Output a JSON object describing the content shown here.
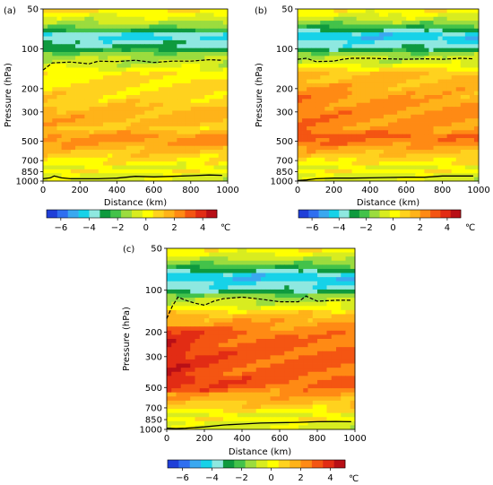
{
  "palette": {
    "levels": [
      "#1f3fd8",
      "#2f6ff0",
      "#3aa8f0",
      "#16d2e8",
      "#8ee8e0",
      "#0e9a3e",
      "#43c24a",
      "#9bdc3e",
      "#d8ec20",
      "#ffff00",
      "#ffd21e",
      "#ffb319",
      "#ff8a14",
      "#f45512",
      "#e22c14",
      "#b80f16"
    ],
    "line": "#000000"
  },
  "chart_data": [
    {
      "type": "heatmap",
      "panel_label": "(a)",
      "xlabel": "Distance (km)",
      "ylabel": "Pressure (hPa)",
      "xlim": [
        0,
        1000
      ],
      "ylim": [
        1000,
        50
      ],
      "y_scale": "log",
      "x_ticks": [
        "0",
        "200",
        "400",
        "600",
        "800",
        "1000"
      ],
      "y_ticks": [
        "50",
        "100",
        "200",
        "300",
        "500",
        "700",
        "850",
        "1000"
      ],
      "colorbar": {
        "ticks": [
          "−6",
          "−4",
          "−2",
          "0",
          "2",
          "4"
        ],
        "unit": "℃",
        "range": [
          -7,
          5
        ],
        "step": 0.75
      },
      "temperature_profile": {
        "pressure_hPa": [
          50,
          60,
          70,
          80,
          90,
          100,
          110,
          130,
          150,
          200,
          250,
          300,
          350,
          400,
          450,
          500,
          550,
          600,
          650,
          700,
          750,
          800,
          850,
          900,
          950,
          1000
        ],
        "value_C": [
          0.6,
          -0.6,
          -1.8,
          -4.5,
          -3.4,
          -3.0,
          -1.4,
          -0.8,
          0.3,
          0.6,
          0.9,
          1.4,
          1.6,
          1.0,
          2.0,
          2.1,
          1.6,
          1.2,
          0.8,
          0.5,
          0.1,
          -0.6,
          0.4,
          -0.6,
          -0.3,
          -0.9
        ]
      },
      "tropopause_line_hPa": [
        [
          0,
          145
        ],
        [
          50,
          128
        ],
        [
          150,
          126
        ],
        [
          250,
          130
        ],
        [
          300,
          124
        ],
        [
          400,
          125
        ],
        [
          500,
          122
        ],
        [
          600,
          127
        ],
        [
          700,
          124
        ],
        [
          800,
          124
        ],
        [
          900,
          121
        ],
        [
          970,
          122
        ]
      ],
      "surface_line_hPa": [
        [
          0,
          960
        ],
        [
          40,
          945
        ],
        [
          60,
          915
        ],
        [
          100,
          945
        ],
        [
          150,
          960
        ],
        [
          200,
          960
        ],
        [
          300,
          960
        ],
        [
          400,
          950
        ],
        [
          500,
          920
        ],
        [
          600,
          930
        ],
        [
          700,
          920
        ],
        [
          800,
          910
        ],
        [
          900,
          900
        ],
        [
          970,
          905
        ]
      ]
    },
    {
      "type": "heatmap",
      "panel_label": "(b)",
      "xlabel": "Distance (km)",
      "ylabel": "Pressure (hPa)",
      "xlim": [
        0,
        1000
      ],
      "ylim": [
        1000,
        50
      ],
      "y_scale": "log",
      "x_ticks": [
        "0",
        "200",
        "400",
        "600",
        "800",
        "1000"
      ],
      "y_ticks": [
        "50",
        "100",
        "200",
        "300",
        "500",
        "700",
        "850",
        "1000"
      ],
      "colorbar": {
        "ticks": [
          "−6",
          "−4",
          "−2",
          "0",
          "2",
          "4"
        ],
        "unit": "℃",
        "range": [
          -7,
          5
        ],
        "step": 0.75
      },
      "temperature_profile": {
        "pressure_hPa": [
          50,
          60,
          70,
          80,
          90,
          100,
          110,
          130,
          150,
          200,
          250,
          300,
          350,
          400,
          450,
          500,
          550,
          600,
          650,
          700,
          750,
          800,
          850,
          900,
          950,
          1000
        ],
        "value_C": [
          0.4,
          -0.8,
          -2.6,
          -4.8,
          -3.8,
          -3.2,
          -1.3,
          -0.5,
          1.2,
          1.6,
          1.8,
          2.1,
          2.0,
          1.9,
          2.8,
          2.4,
          1.9,
          1.5,
          1.0,
          0.6,
          0.2,
          -0.6,
          0.4,
          -0.6,
          -0.3,
          -0.9
        ]
      },
      "tropopause_line_hPa": [
        [
          0,
          120
        ],
        [
          50,
          118
        ],
        [
          100,
          125
        ],
        [
          200,
          124
        ],
        [
          250,
          120
        ],
        [
          300,
          118
        ],
        [
          400,
          118
        ],
        [
          500,
          119
        ],
        [
          600,
          120
        ],
        [
          700,
          119
        ],
        [
          800,
          120
        ],
        [
          900,
          118
        ],
        [
          970,
          119
        ]
      ],
      "surface_line_hPa": [
        [
          0,
          990
        ],
        [
          50,
          980
        ],
        [
          100,
          960
        ],
        [
          200,
          950
        ],
        [
          300,
          950
        ],
        [
          400,
          945
        ],
        [
          500,
          940
        ],
        [
          600,
          935
        ],
        [
          700,
          935
        ],
        [
          800,
          915
        ],
        [
          900,
          915
        ],
        [
          970,
          915
        ]
      ]
    },
    {
      "type": "heatmap",
      "panel_label": "(c)",
      "xlabel": "Distance (km)",
      "ylabel": "Pressure (hPa)",
      "xlim": [
        0,
        1000
      ],
      "ylim": [
        1000,
        50
      ],
      "y_scale": "log",
      "x_ticks": [
        "0",
        "200",
        "400",
        "600",
        "800",
        "1000"
      ],
      "y_ticks": [
        "50",
        "100",
        "200",
        "300",
        "500",
        "700",
        "850",
        "1000"
      ],
      "colorbar": {
        "ticks": [
          "−6",
          "−4",
          "−2",
          "0",
          "2",
          "4"
        ],
        "unit": "℃",
        "range": [
          -7,
          5
        ],
        "step": 0.75
      },
      "temperature_profile": {
        "pressure_hPa": [
          50,
          60,
          70,
          80,
          90,
          100,
          110,
          130,
          150,
          200,
          250,
          300,
          350,
          400,
          450,
          500,
          550,
          600,
          650,
          700,
          750,
          800,
          850,
          900,
          950,
          1000
        ],
        "value_C": [
          0.4,
          -0.9,
          -2.6,
          -4.8,
          -4.0,
          -3.4,
          -1.5,
          -0.4,
          1.5,
          2.4,
          2.6,
          2.8,
          2.7,
          2.6,
          2.9,
          2.5,
          2.0,
          1.7,
          1.2,
          0.8,
          0.2,
          -0.6,
          0.4,
          -0.6,
          -0.3,
          -0.9
        ]
      },
      "tropopause_line_hPa": [
        [
          0,
          160
        ],
        [
          30,
          130
        ],
        [
          60,
          112
        ],
        [
          100,
          118
        ],
        [
          150,
          124
        ],
        [
          200,
          128
        ],
        [
          250,
          120
        ],
        [
          300,
          115
        ],
        [
          400,
          112
        ],
        [
          500,
          116
        ],
        [
          600,
          121
        ],
        [
          700,
          121
        ],
        [
          740,
          110
        ],
        [
          800,
          120
        ],
        [
          900,
          118
        ],
        [
          980,
          118
        ]
      ],
      "surface_line_hPa": [
        [
          0,
          980
        ],
        [
          50,
          985
        ],
        [
          100,
          980
        ],
        [
          200,
          960
        ],
        [
          300,
          930
        ],
        [
          400,
          915
        ],
        [
          500,
          900
        ],
        [
          600,
          895
        ],
        [
          700,
          890
        ],
        [
          800,
          880
        ],
        [
          900,
          878
        ],
        [
          980,
          880
        ]
      ]
    }
  ]
}
